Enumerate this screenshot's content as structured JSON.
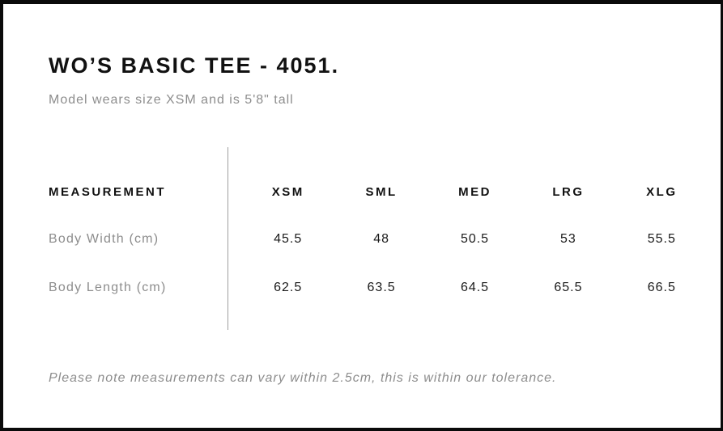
{
  "product": {
    "title": "WO’S BASIC TEE - 4051.",
    "subtitle": "Model wears size XSM and is 5'8\" tall"
  },
  "size_chart": {
    "measurement_header": "MEASUREMENT",
    "sizes": [
      "XSM",
      "SML",
      "MED",
      "LRG",
      "XLG"
    ],
    "rows": [
      {
        "label": "Body Width (cm)",
        "values": [
          "45.5",
          "48",
          "50.5",
          "53",
          "55.5"
        ]
      },
      {
        "label": "Body Length (cm)",
        "values": [
          "62.5",
          "63.5",
          "64.5",
          "65.5",
          "66.5"
        ]
      }
    ],
    "tolerance_note": "Please note measurements can vary within 2.5cm, this is within our tolerance."
  },
  "colors": {
    "frame": "#0a0a0a",
    "text_primary": "#111111",
    "text_secondary": "#8d8d8d",
    "divider": "#a0a0a0"
  }
}
